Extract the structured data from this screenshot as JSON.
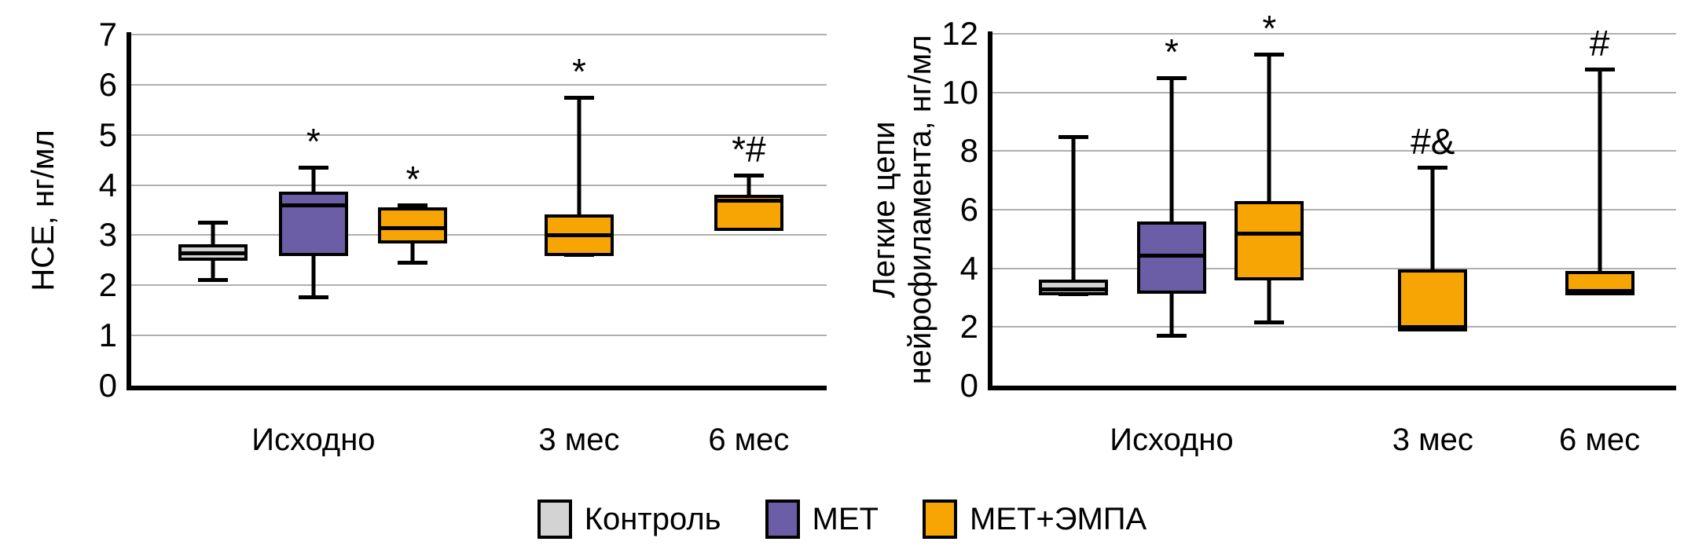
{
  "figure": {
    "background": "#FFFFFF",
    "gridline_color": "#AFAFAF",
    "axis_color": "#000000"
  },
  "legend": {
    "position": "bottom-center",
    "items": [
      {
        "label": "Контроль",
        "color": "#D3D3D3"
      },
      {
        "label": "МЕТ",
        "color": "#6C5DA7"
      },
      {
        "label": "МЕТ+ЭМПА",
        "color": "#F6A504"
      }
    ]
  },
  "chart_data": [
    {
      "type": "boxplot",
      "title": "",
      "ylabel_lines": [
        "НСЕ, нг/мл"
      ],
      "ylim": [
        0,
        7
      ],
      "yticks": [
        0,
        1,
        2,
        3,
        4,
        5,
        6,
        7
      ],
      "grid": true,
      "categories": [
        {
          "label": "Исходно",
          "x_pct": 26.2
        },
        {
          "label": "3 мес",
          "x_pct": 64.4
        },
        {
          "label": "6 мес",
          "x_pct": 88.8
        }
      ],
      "boxes": [
        {
          "series": "Контроль",
          "category": "Исходно",
          "x_pct": 11.8,
          "whisker_low": 2.1,
          "q1": 2.55,
          "median": 2.65,
          "q3": 2.75,
          "whisker_high": 3.25,
          "color": "#D3D3D3",
          "annotation": ""
        },
        {
          "series": "МЕТ",
          "category": "Исходно",
          "x_pct": 26.2,
          "whisker_low": 1.75,
          "q1": 2.65,
          "median": 3.6,
          "q3": 3.8,
          "whisker_high": 4.35,
          "color": "#6C5DA7",
          "annotation": "*"
        },
        {
          "series": "МЕТ+ЭМПА",
          "category": "Исходно",
          "x_pct": 40.5,
          "whisker_low": 2.45,
          "q1": 2.9,
          "median": 3.15,
          "q3": 3.5,
          "whisker_high": 3.6,
          "color": "#F6A504",
          "annotation": "*"
        },
        {
          "series": "МЕТ+ЭМПА",
          "category": "3 мес",
          "x_pct": 64.4,
          "whisker_low": 2.6,
          "q1": 2.65,
          "median": 3.0,
          "q3": 3.35,
          "whisker_high": 5.75,
          "color": "#F6A504",
          "annotation": "*"
        },
        {
          "series": "МЕТ+ЭМПА",
          "category": "6 мес",
          "x_pct": 88.8,
          "whisker_low": 3.15,
          "q1": 3.15,
          "median": 3.7,
          "q3": 3.75,
          "whisker_high": 4.2,
          "color": "#F6A504",
          "annotation": "*#"
        }
      ]
    },
    {
      "type": "boxplot",
      "title": "",
      "ylabel_lines": [
        "Легкие цепи",
        "нейрофиламента, нг/мл"
      ],
      "ylim": [
        0,
        12
      ],
      "yticks": [
        0,
        2,
        4,
        6,
        8,
        10,
        12
      ],
      "grid": true,
      "categories": [
        {
          "label": "Исходно",
          "x_pct": 26.2
        },
        {
          "label": "3 мес",
          "x_pct": 64.4
        },
        {
          "label": "6 мес",
          "x_pct": 88.8
        }
      ],
      "boxes": [
        {
          "series": "Контроль",
          "category": "Исходно",
          "x_pct": 11.8,
          "whisker_low": 3.1,
          "q1": 3.2,
          "median": 3.3,
          "q3": 3.5,
          "whisker_high": 8.5,
          "color": "#D3D3D3",
          "annotation": ""
        },
        {
          "series": "МЕТ",
          "category": "Исходно",
          "x_pct": 26.2,
          "whisker_low": 1.7,
          "q1": 3.25,
          "median": 4.45,
          "q3": 5.5,
          "whisker_high": 10.5,
          "color": "#6C5DA7",
          "annotation": "*"
        },
        {
          "series": "МЕТ+ЭМПА",
          "category": "Исходно",
          "x_pct": 40.5,
          "whisker_low": 2.15,
          "q1": 3.7,
          "median": 5.2,
          "q3": 6.2,
          "whisker_high": 11.3,
          "color": "#F6A504",
          "annotation": "*"
        },
        {
          "series": "МЕТ+ЭМПА",
          "category": "3 мес",
          "x_pct": 64.4,
          "whisker_low": 1.9,
          "q1": 1.95,
          "median": 2.0,
          "q3": 3.85,
          "whisker_high": 7.45,
          "color": "#F6A504",
          "annotation": "#&"
        },
        {
          "series": "МЕТ+ЭМПА",
          "category": "6 мес",
          "x_pct": 88.8,
          "whisker_low": 3.15,
          "q1": 3.2,
          "median": 3.25,
          "q3": 3.8,
          "whisker_high": 10.8,
          "color": "#F6A504",
          "annotation": "#"
        }
      ]
    }
  ]
}
